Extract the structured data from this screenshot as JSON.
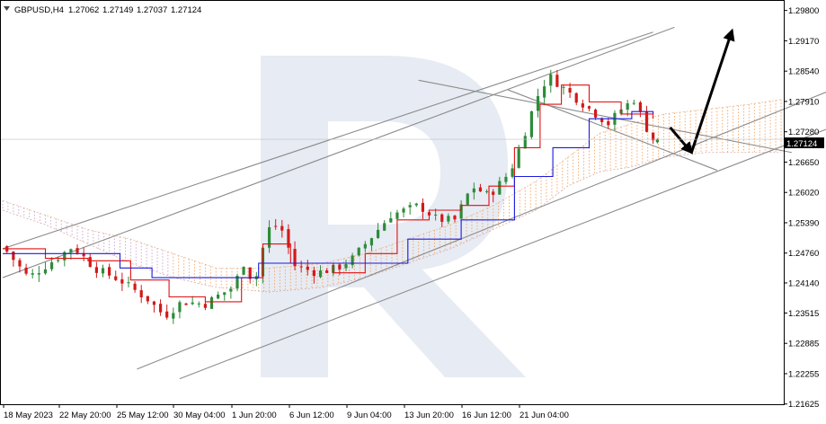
{
  "header": {
    "symbol": "GBPUSD,H4",
    "ohlc": [
      "1.27062",
      "1.27149",
      "1.27037",
      "1.27124"
    ]
  },
  "price_tag": "1.27124",
  "colors": {
    "bull_candle": "#2e8b3a",
    "bear_candle": "#d21a1a",
    "tenkan": "#e01010",
    "kijun": "#1a1ae0",
    "cloud": "#f4a460",
    "cloud_bear": "#c8a2c8",
    "trendline": "#8c8c8c",
    "arrow": "#000000"
  },
  "chart_data": {
    "type": "candlestick",
    "symbol": "GBPUSD",
    "timeframe": "H4",
    "ylim": [
      1.2162,
      1.2998
    ],
    "y_ticks": [
      "1.29800",
      "1.29170",
      "1.28540",
      "1.27910",
      "1.27280",
      "1.26650",
      "1.26020",
      "1.25390",
      "1.24760",
      "1.24140",
      "1.23515",
      "1.22885",
      "1.22255",
      "1.21625"
    ],
    "x_ticks": [
      "18 May 2023",
      "22 May 20:00",
      "25 May 12:00",
      "30 May 04:00",
      "1 Jun 20:00",
      "6 Jun 12:00",
      "9 Jun 04:00",
      "13 Jun 20:00",
      "16 Jun 12:00",
      "21 Jun 04:00"
    ],
    "last_price": 1.27124,
    "close_path": [
      [
        0,
        1.249
      ],
      [
        12,
        1.2425
      ],
      [
        22,
        1.2455
      ],
      [
        33,
        1.249
      ],
      [
        43,
        1.2445
      ],
      [
        55,
        1.242
      ],
      [
        68,
        1.238
      ],
      [
        76,
        1.2345
      ],
      [
        84,
        1.2375
      ],
      [
        95,
        1.237
      ],
      [
        100,
        1.2385
      ],
      [
        108,
        1.2405
      ],
      [
        113,
        1.2455
      ],
      [
        118,
        1.241
      ],
      [
        124,
        1.2525
      ],
      [
        130,
        1.2535
      ],
      [
        137,
        1.245
      ],
      [
        147,
        1.2435
      ],
      [
        157,
        1.2445
      ],
      [
        164,
        1.2465
      ],
      [
        172,
        1.2505
      ],
      [
        182,
        1.2555
      ],
      [
        195,
        1.2575
      ],
      [
        204,
        1.2545
      ],
      [
        212,
        1.2545
      ],
      [
        220,
        1.2615
      ],
      [
        228,
        1.2595
      ],
      [
        238,
        1.2645
      ],
      [
        244,
        1.2715
      ],
      [
        250,
        1.2795
      ],
      [
        256,
        1.2845
      ],
      [
        264,
        1.2815
      ],
      [
        271,
        1.279
      ],
      [
        278,
        1.2765
      ],
      [
        284,
        1.2745
      ],
      [
        290,
        1.2775
      ],
      [
        296,
        1.2795
      ],
      [
        302,
        1.2735
      ],
      [
        305,
        1.2712
      ]
    ],
    "tenkan": [
      [
        0,
        1.2485
      ],
      [
        20,
        1.2465
      ],
      [
        40,
        1.246
      ],
      [
        60,
        1.242
      ],
      [
        78,
        1.2385
      ],
      [
        95,
        1.2375
      ],
      [
        112,
        1.2425
      ],
      [
        122,
        1.2495
      ],
      [
        135,
        1.2455
      ],
      [
        155,
        1.2435
      ],
      [
        170,
        1.2475
      ],
      [
        185,
        1.2545
      ],
      [
        200,
        1.2565
      ],
      [
        215,
        1.2575
      ],
      [
        228,
        1.2615
      ],
      [
        240,
        1.2695
      ],
      [
        252,
        1.2785
      ],
      [
        262,
        1.2825
      ],
      [
        275,
        1.279
      ],
      [
        290,
        1.2765
      ],
      [
        305,
        1.2755
      ]
    ],
    "kijun": [
      [
        0,
        1.2475
      ],
      [
        30,
        1.2475
      ],
      [
        55,
        1.2445
      ],
      [
        70,
        1.2425
      ],
      [
        110,
        1.2425
      ],
      [
        120,
        1.2455
      ],
      [
        150,
        1.2455
      ],
      [
        165,
        1.2455
      ],
      [
        190,
        1.2505
      ],
      [
        215,
        1.2545
      ],
      [
        240,
        1.2635
      ],
      [
        258,
        1.2695
      ],
      [
        275,
        1.2755
      ],
      [
        295,
        1.277
      ],
      [
        305,
        1.2765
      ]
    ],
    "cloud_top": [
      [
        0,
        1.2585
      ],
      [
        20,
        1.2555
      ],
      [
        40,
        1.2525
      ],
      [
        60,
        1.2505
      ],
      [
        80,
        1.2475
      ],
      [
        100,
        1.2445
      ],
      [
        125,
        1.2445
      ],
      [
        150,
        1.2455
      ],
      [
        170,
        1.2475
      ],
      [
        190,
        1.2505
      ],
      [
        210,
        1.2535
      ],
      [
        230,
        1.2575
      ],
      [
        250,
        1.2625
      ],
      [
        265,
        1.2675
      ],
      [
        280,
        1.2725
      ],
      [
        295,
        1.2745
      ],
      [
        310,
        1.2765
      ],
      [
        330,
        1.2775
      ],
      [
        350,
        1.2785
      ],
      [
        365,
        1.2795
      ]
    ],
    "cloud_bottom": [
      [
        0,
        1.2565
      ],
      [
        20,
        1.2535
      ],
      [
        40,
        1.2495
      ],
      [
        60,
        1.2455
      ],
      [
        80,
        1.2425
      ],
      [
        100,
        1.2405
      ],
      [
        125,
        1.2395
      ],
      [
        150,
        1.2405
      ],
      [
        170,
        1.2425
      ],
      [
        190,
        1.2455
      ],
      [
        210,
        1.2485
      ],
      [
        230,
        1.2525
      ],
      [
        250,
        1.2565
      ],
      [
        265,
        1.2615
      ],
      [
        280,
        1.2645
      ],
      [
        295,
        1.2655
      ],
      [
        310,
        1.2675
      ],
      [
        330,
        1.2685
      ],
      [
        350,
        1.2685
      ],
      [
        365,
        1.2685
      ]
    ],
    "trendlines": [
      [
        [
          0,
          1.2425
        ],
        [
          315,
          1.2945
        ]
      ],
      [
        [
          0,
          1.2485
        ],
        [
          305,
          1.2935
        ]
      ],
      [
        [
          63,
          1.2235
        ],
        [
          400,
          1.2835
        ]
      ],
      [
        [
          83,
          1.2215
        ],
        [
          430,
          1.2808
        ]
      ],
      [
        [
          195,
          1.2835
        ],
        [
          370,
          1.2685
        ]
      ],
      [
        [
          237,
          1.2815
        ],
        [
          335,
          1.2648
        ]
      ]
    ],
    "arrows": [
      [
        [
          313,
          1.2737
        ],
        [
          323,
          1.2685
        ]
      ],
      [
        [
          323,
          1.2685
        ],
        [
          342,
          1.2938
        ]
      ]
    ]
  }
}
